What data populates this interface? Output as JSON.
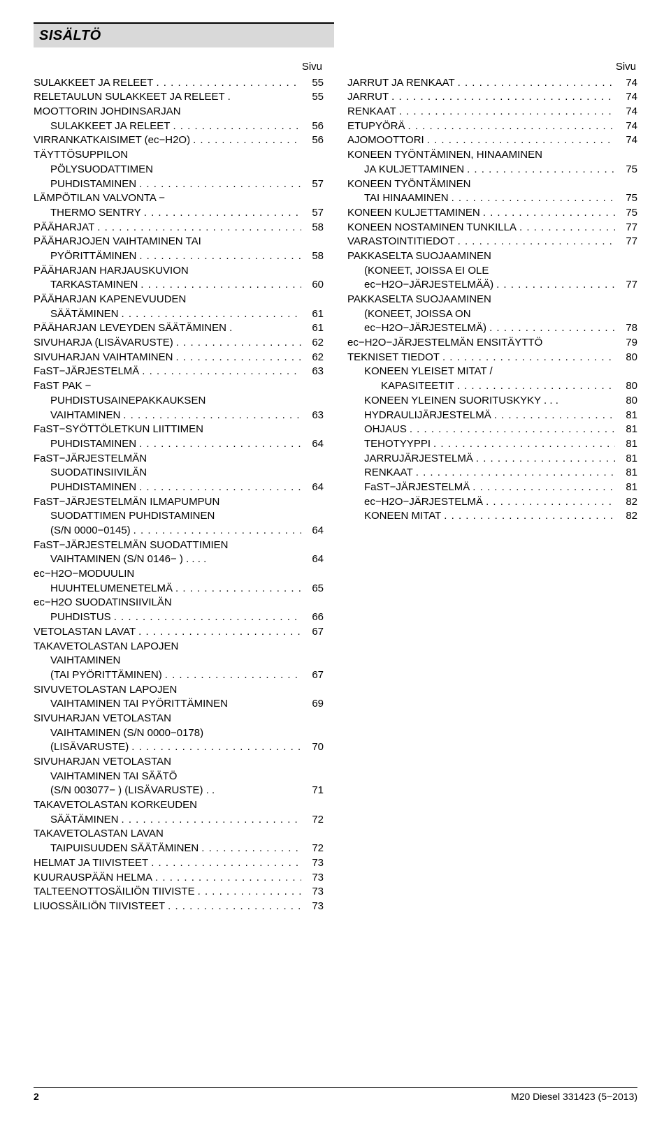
{
  "header": {
    "title": "SISÄLTÖ"
  },
  "col_header": "Sivu",
  "left": [
    {
      "label": "SULAKKEET JA RELEET",
      "page": "55",
      "indent": 0
    },
    {
      "label": "RELETAULUN SULAKKEET JA RELEET .",
      "page": "55",
      "indent": 0,
      "nodots": true
    },
    {
      "label": "MOOTTORIN JOHDINSARJAN",
      "page": "",
      "indent": 0,
      "nodots": true
    },
    {
      "label": "SULAKKEET JA RELEET",
      "page": "56",
      "indent": 1
    },
    {
      "label": "VIRRANKATKAISIMET (ec−H2O)",
      "page": "56",
      "indent": 0
    },
    {
      "label": "TÄYTTÖSUPPILON",
      "page": "",
      "indent": 0,
      "nodots": true
    },
    {
      "label": "PÖLYSUODATTIMEN",
      "page": "",
      "indent": 1,
      "nodots": true
    },
    {
      "label": "PUHDISTAMINEN",
      "page": "57",
      "indent": 1
    },
    {
      "label": "LÄMPÖTILAN VALVONTA −",
      "page": "",
      "indent": 0,
      "nodots": true
    },
    {
      "label": "THERMO SENTRY",
      "page": "57",
      "indent": 1
    },
    {
      "label": "PÄÄHARJAT",
      "page": "58",
      "indent": 0
    },
    {
      "label": "PÄÄHARJOJEN VAIHTAMINEN TAI",
      "page": "",
      "indent": 0,
      "nodots": true
    },
    {
      "label": "PYÖRITTÄMINEN",
      "page": "58",
      "indent": 1
    },
    {
      "label": "PÄÄHARJAN HARJAUSKUVION",
      "page": "",
      "indent": 0,
      "nodots": true
    },
    {
      "label": "TARKASTAMINEN",
      "page": "60",
      "indent": 1
    },
    {
      "label": "PÄÄHARJAN KAPENEVUUDEN",
      "page": "",
      "indent": 0,
      "nodots": true
    },
    {
      "label": "SÄÄTÄMINEN",
      "page": "61",
      "indent": 1
    },
    {
      "label": "PÄÄHARJAN LEVEYDEN SÄÄTÄMINEN .",
      "page": "61",
      "indent": 0,
      "nodots": true
    },
    {
      "label": "SIVUHARJA (LISÄVARUSTE)",
      "page": "62",
      "indent": 0
    },
    {
      "label": "SIVUHARJAN VAIHTAMINEN",
      "page": "62",
      "indent": 0
    },
    {
      "label": "FaST−JÄRJESTELMÄ",
      "page": "63",
      "indent": 0
    },
    {
      "label": "FaST PAK −",
      "page": "",
      "indent": 0,
      "nodots": true
    },
    {
      "label": "PUHDISTUSAINEPAKKAUKSEN",
      "page": "",
      "indent": 1,
      "nodots": true
    },
    {
      "label": "VAIHTAMINEN",
      "page": "63",
      "indent": 1
    },
    {
      "label": "FaST−SYÖTTÖLETKUN LIITTIMEN",
      "page": "",
      "indent": 0,
      "nodots": true
    },
    {
      "label": "PUHDISTAMINEN",
      "page": "64",
      "indent": 1
    },
    {
      "label": "FaST−JÄRJESTELMÄN",
      "page": "",
      "indent": 0,
      "nodots": true
    },
    {
      "label": "SUODATINSIIVILÄN",
      "page": "",
      "indent": 1,
      "nodots": true
    },
    {
      "label": "PUHDISTAMINEN",
      "page": "64",
      "indent": 1
    },
    {
      "label": "FaST−JÄRJESTELMÄN ILMAPUMPUN",
      "page": "",
      "indent": 0,
      "nodots": true
    },
    {
      "label": "SUODATTIMEN PUHDISTAMINEN",
      "page": "",
      "indent": 1,
      "nodots": true
    },
    {
      "label": "(S/N 0000−0145)",
      "page": "64",
      "indent": 1
    },
    {
      "label": "FaST−JÄRJESTELMÄN SUODATTIMIEN",
      "page": "",
      "indent": 0,
      "nodots": true
    },
    {
      "label": "VAIHTAMINEN (S/N 0146−        ) . . . .",
      "page": "64",
      "indent": 1,
      "nodots": true
    },
    {
      "label": "ec−H2O−MODUULIN",
      "page": "",
      "indent": 0,
      "nodots": true
    },
    {
      "label": "HUUHTELUMENETELMÄ",
      "page": "65",
      "indent": 1
    },
    {
      "label": "ec−H2O SUODATINSIIVILÄN",
      "page": "",
      "indent": 0,
      "nodots": true
    },
    {
      "label": "PUHDISTUS",
      "page": "66",
      "indent": 1
    },
    {
      "label": "VETOLASTAN LAVAT",
      "page": "67",
      "indent": 0
    },
    {
      "label": "TAKAVETOLASTAN LAPOJEN",
      "page": "",
      "indent": 0,
      "nodots": true
    },
    {
      "label": "VAIHTAMINEN",
      "page": "",
      "indent": 1,
      "nodots": true
    },
    {
      "label": "(TAI PYÖRITTÄMINEN)",
      "page": "67",
      "indent": 1
    },
    {
      "label": "SIVUVETOLASTAN LAPOJEN",
      "page": "",
      "indent": 0,
      "nodots": true
    },
    {
      "label": "VAIHTAMINEN TAI PYÖRITTÄMINEN",
      "page": "69",
      "indent": 1,
      "nodots": true
    },
    {
      "label": "SIVUHARJAN VETOLASTAN",
      "page": "",
      "indent": 0,
      "nodots": true
    },
    {
      "label": "VAIHTAMINEN (S/N 0000−0178)",
      "page": "",
      "indent": 1,
      "nodots": true
    },
    {
      "label": "(LISÄVARUSTE)",
      "page": "70",
      "indent": 1
    },
    {
      "label": "SIVUHARJAN VETOLASTAN",
      "page": "",
      "indent": 0,
      "nodots": true
    },
    {
      "label": "VAIHTAMINEN TAI SÄÄTÖ",
      "page": "",
      "indent": 1,
      "nodots": true
    },
    {
      "label": "(S/N 003077−       ) (LISÄVARUSTE) . .",
      "page": "71",
      "indent": 1,
      "nodots": true
    },
    {
      "label": "TAKAVETOLASTAN KORKEUDEN",
      "page": "",
      "indent": 0,
      "nodots": true
    },
    {
      "label": "SÄÄTÄMINEN",
      "page": "72",
      "indent": 1
    },
    {
      "label": "TAKAVETOLASTAN LAVAN",
      "page": "",
      "indent": 0,
      "nodots": true
    },
    {
      "label": "TAIPUISUUDEN SÄÄTÄMINEN",
      "page": "72",
      "indent": 1
    },
    {
      "label": "HELMAT JA TIIVISTEET",
      "page": "73",
      "indent": 0
    },
    {
      "label": "KUURAUSPÄÄN HELMA",
      "page": "73",
      "indent": 0
    },
    {
      "label": "TALTEENOTTOSÄILIÖN TIIVISTE",
      "page": "73",
      "indent": 0
    },
    {
      "label": "LIUOSSÄILIÖN TIIVISTEET",
      "page": "73",
      "indent": 0
    }
  ],
  "right": [
    {
      "label": "JARRUT JA RENKAAT",
      "page": "74",
      "indent": 0
    },
    {
      "label": "JARRUT",
      "page": "74",
      "indent": 0
    },
    {
      "label": "RENKAAT",
      "page": "74",
      "indent": 0
    },
    {
      "label": "ETUPYÖRÄ",
      "page": "74",
      "indent": 0
    },
    {
      "label": "AJOMOOTTORI",
      "page": "74",
      "indent": 0
    },
    {
      "label": "KONEEN TYÖNTÄMINEN, HINAAMINEN",
      "page": "",
      "indent": 0,
      "nodots": true
    },
    {
      "label": "JA KULJETTAMINEN",
      "page": "75",
      "indent": 1
    },
    {
      "label": "KONEEN TYÖNTÄMINEN",
      "page": "",
      "indent": 0,
      "nodots": true
    },
    {
      "label": "TAI HINAAMINEN",
      "page": "75",
      "indent": 1
    },
    {
      "label": "KONEEN KULJETTAMINEN",
      "page": "75",
      "indent": 0
    },
    {
      "label": "KONEEN NOSTAMINEN TUNKILLA",
      "page": "77",
      "indent": 0
    },
    {
      "label": "VARASTOINTITIEDOT",
      "page": "77",
      "indent": 0
    },
    {
      "label": "PAKKASELTA SUOJAAMINEN",
      "page": "",
      "indent": 0,
      "nodots": true
    },
    {
      "label": "(KONEET, JOISSA EI OLE",
      "page": "",
      "indent": 1,
      "nodots": true
    },
    {
      "label": "ec−H2O−JÄRJESTELMÄÄ)",
      "page": "77",
      "indent": 1
    },
    {
      "label": "PAKKASELTA SUOJAAMINEN",
      "page": "",
      "indent": 0,
      "nodots": true
    },
    {
      "label": "(KONEET, JOISSA ON",
      "page": "",
      "indent": 1,
      "nodots": true
    },
    {
      "label": "ec−H2O−JÄRJESTELMÄ)",
      "page": "78",
      "indent": 1
    },
    {
      "label": "ec−H2O−JÄRJESTELMÄN ENSITÄYTTÖ",
      "page": "79",
      "indent": 0,
      "nodots": true
    },
    {
      "label": "TEKNISET TIEDOT",
      "page": "80",
      "indent": 0
    },
    {
      "label": "KONEEN YLEISET MITAT /",
      "page": "",
      "indent": 1,
      "nodots": true
    },
    {
      "label": "KAPASITEETIT",
      "page": "80",
      "indent": 2
    },
    {
      "label": "KONEEN YLEINEN SUORITUSKYKY . . .",
      "page": "80",
      "indent": 1,
      "nodots": true
    },
    {
      "label": "HYDRAULIJÄRJESTELMÄ",
      "page": "81",
      "indent": 1
    },
    {
      "label": "OHJAUS",
      "page": "81",
      "indent": 1
    },
    {
      "label": "TEHOTYYPPI",
      "page": "81",
      "indent": 1
    },
    {
      "label": "JARRUJÄRJESTELMÄ",
      "page": "81",
      "indent": 1
    },
    {
      "label": "RENKAAT",
      "page": "81",
      "indent": 1
    },
    {
      "label": "FaST−JÄRJESTELMÄ",
      "page": "81",
      "indent": 1
    },
    {
      "label": "ec−H2O−JÄRJESTELMÄ",
      "page": "82",
      "indent": 1
    },
    {
      "label": "KONEEN MITAT",
      "page": "82",
      "indent": 1
    }
  ],
  "footer": {
    "pagenum": "2",
    "doc": "M20 Diesel 331423 (5−2013)"
  }
}
